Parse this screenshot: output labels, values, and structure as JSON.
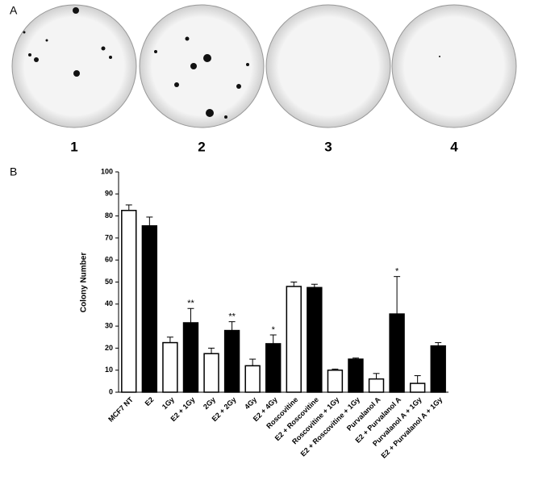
{
  "panel_labels": [
    "A",
    "B"
  ],
  "plates": [
    "1",
    "2",
    "3",
    "4"
  ],
  "chart_data": {
    "type": "bar",
    "ylabel": "Colony Number",
    "categories": [
      "MCF7 NT",
      "E2",
      "1Gy",
      "E2 + 1Gy",
      "2Gy",
      "E2 + 2Gy",
      "4Gy",
      "E2 + 4Gy",
      "Roscovitine",
      "E2 + Roscovitine",
      "Roscovitine + 1Gy",
      "E2 + Roscovitine + 1Gy",
      "Purvalanol A",
      "E2 + Purvalanol A",
      "Purvalanol A + 1Gy",
      "E2 + Purvalanol A + 1Gy"
    ],
    "values": [
      82.5,
      75.5,
      22.5,
      31.5,
      17.5,
      28,
      12,
      22,
      48,
      47.5,
      10,
      15,
      6,
      35.5,
      4,
      21
    ],
    "errors": [
      2.5,
      4,
      2.5,
      6.5,
      2.5,
      4,
      3,
      4,
      2,
      1.5,
      0.5,
      0.5,
      2.5,
      17,
      3.5,
      1.5
    ],
    "colors": [
      "#ffffff",
      "#000000",
      "#ffffff",
      "#000000",
      "#ffffff",
      "#000000",
      "#ffffff",
      "#000000",
      "#ffffff",
      "#000000",
      "#ffffff",
      "#000000",
      "#ffffff",
      "#000000",
      "#ffffff",
      "#000000"
    ],
    "significance": [
      null,
      null,
      null,
      "**",
      null,
      "**",
      null,
      "*",
      null,
      null,
      null,
      null,
      null,
      "*",
      null,
      null
    ],
    "ylim": [
      0,
      100
    ],
    "yticks": [
      0,
      10,
      20,
      30,
      40,
      50,
      60,
      70,
      80,
      90,
      100
    ]
  }
}
